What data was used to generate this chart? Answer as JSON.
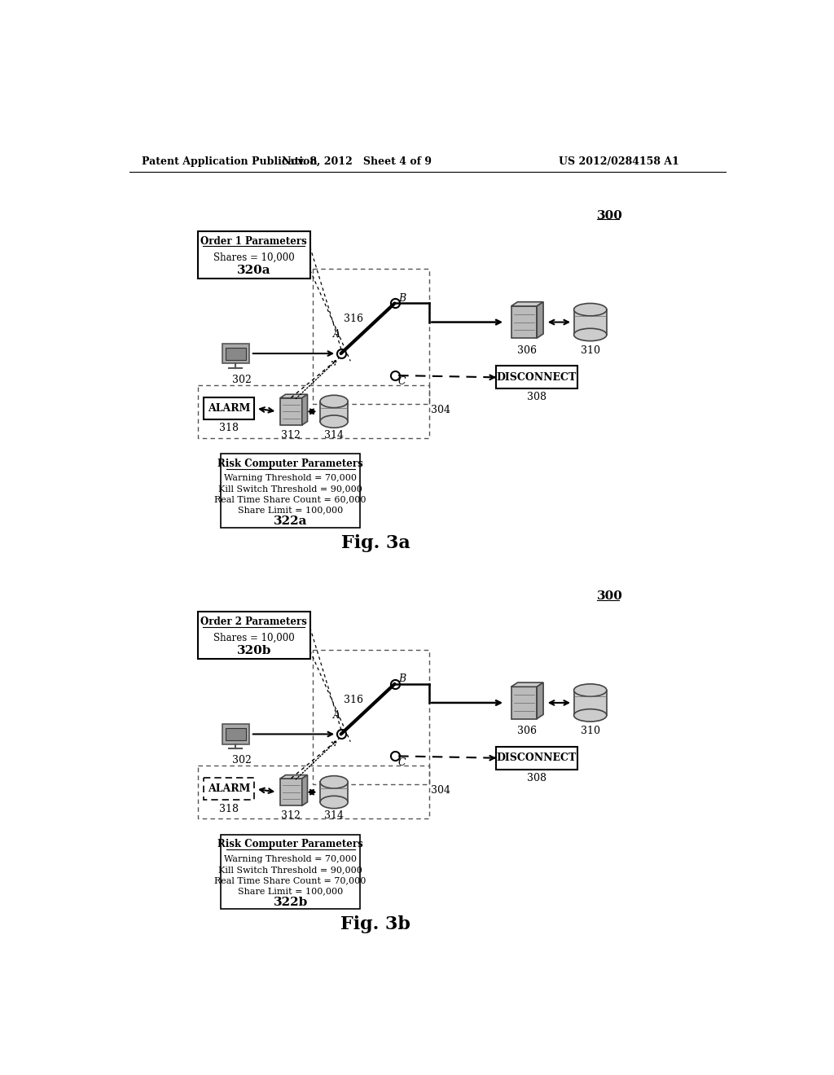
{
  "header_left": "Patent Application Publication",
  "header_mid": "Nov. 8, 2012   Sheet 4 of 9",
  "header_right": "US 2012/0284158 A1",
  "fig3a_label": "Fig. 3a",
  "fig3b_label": "Fig. 3b",
  "label_300": "300",
  "label_302": "302",
  "label_304": "304",
  "label_306": "306",
  "label_308": "308",
  "label_310": "310",
  "label_312": "312",
  "label_314": "314",
  "label_316": "316",
  "label_318": "318",
  "label_320a": "320a",
  "label_322a": "322a",
  "label_320b": "320b",
  "label_322b": "322b",
  "order1_title": "Order 1 Parameters",
  "order1_line1": "Shares = 10,000",
  "order2_title": "Order 2 Parameters",
  "order2_line1": "Shares = 10,000",
  "risk_title": "Risk Computer Parameters",
  "risk_line1a": "Warning Threshold = 70,000",
  "risk_line2a": "Kill Switch Threshold = 90,000",
  "risk_line3a": "Real Time Share Count = 60,000",
  "risk_line4a": "Share Limit = 100,000",
  "risk_line1b": "Warning Threshold = 70,000",
  "risk_line2b": "Kill Switch Threshold = 90,000",
  "risk_line3b": "Real Time Share Count = 70,000",
  "risk_line4b": "Share Limit = 100,000",
  "alarm_label": "Alarm",
  "disconnect_label": "Disconnect",
  "label_A": "A",
  "label_B": "B",
  "label_C": "C",
  "background": "#ffffff"
}
